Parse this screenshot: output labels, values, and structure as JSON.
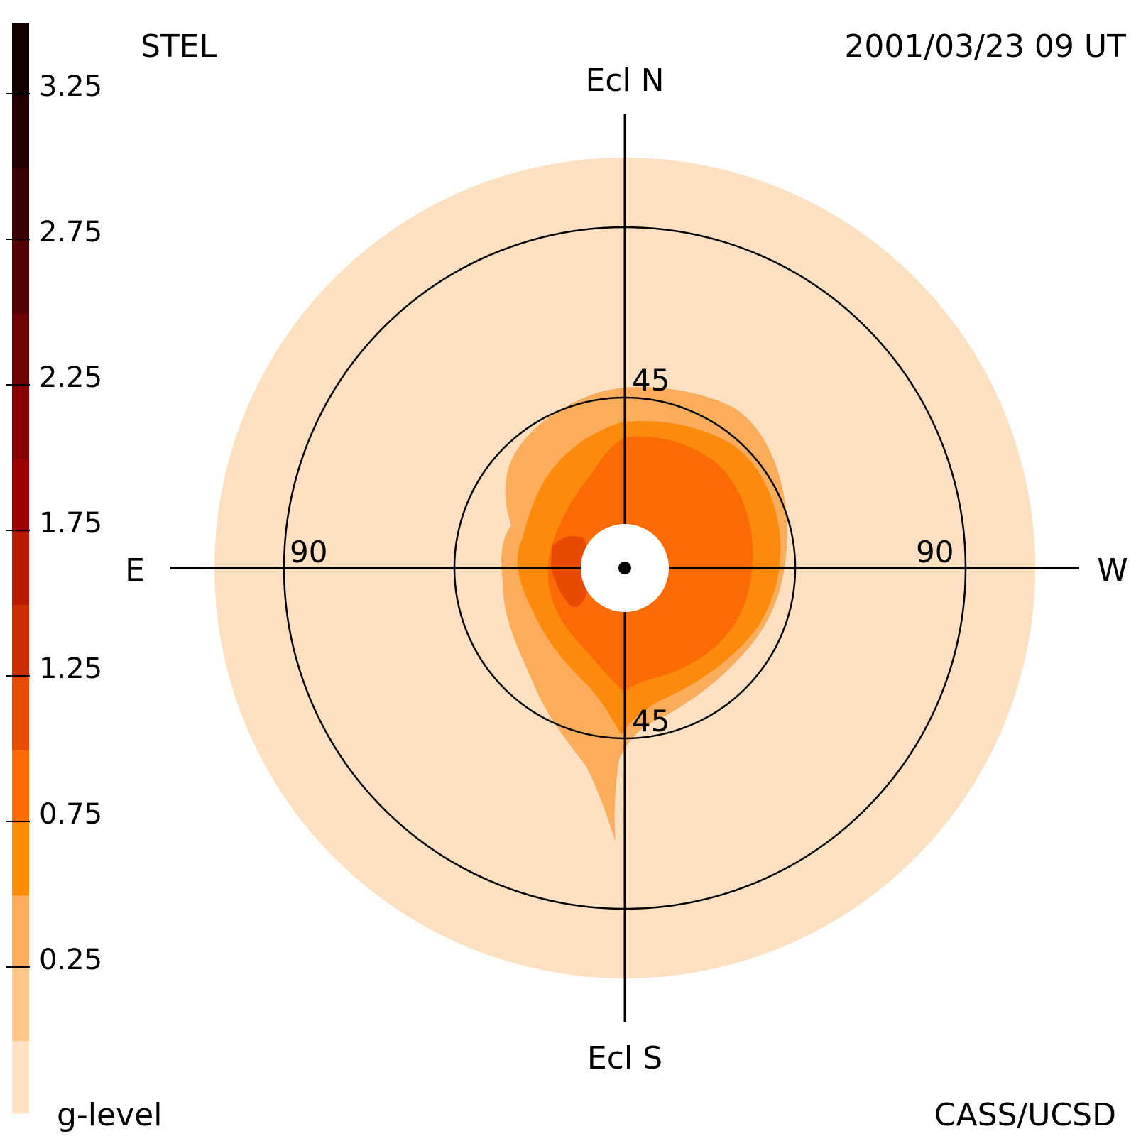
{
  "header": {
    "left": "STEL",
    "right": "2001/03/23 09 UT"
  },
  "footer": {
    "left": "g-level",
    "right": "CASS/UCSD"
  },
  "compass": {
    "north": "Ecl N",
    "south": "Ecl S",
    "east": "E",
    "west": "W"
  },
  "rings": {
    "inner_top": "45",
    "inner_bottom": "45",
    "outer_left": "90",
    "outer_right": "90"
  },
  "color_scale": {
    "label": "g-level",
    "ticks": [
      "3.25",
      "2.75",
      "2.25",
      "1.75",
      "1.25",
      "0.75",
      "0.25"
    ],
    "colors": [
      "#ffe1c3",
      "#ffc78a",
      "#ffad5c",
      "#ff8c00",
      "#ff6a00",
      "#e84a00",
      "#cc2e00",
      "#b81b00",
      "#a00000",
      "#880000",
      "#6e0000",
      "#540000",
      "#3a0000",
      "#220000",
      "#120000"
    ]
  },
  "map_colors": {
    "background": "#fde0c1",
    "level_0_25": "#fbad5b",
    "level_0_75": "#fb8a0d",
    "level_1_00": "#fc6a06",
    "level_1_25": "#e84a00",
    "sun_disk": "#ffffff"
  }
}
